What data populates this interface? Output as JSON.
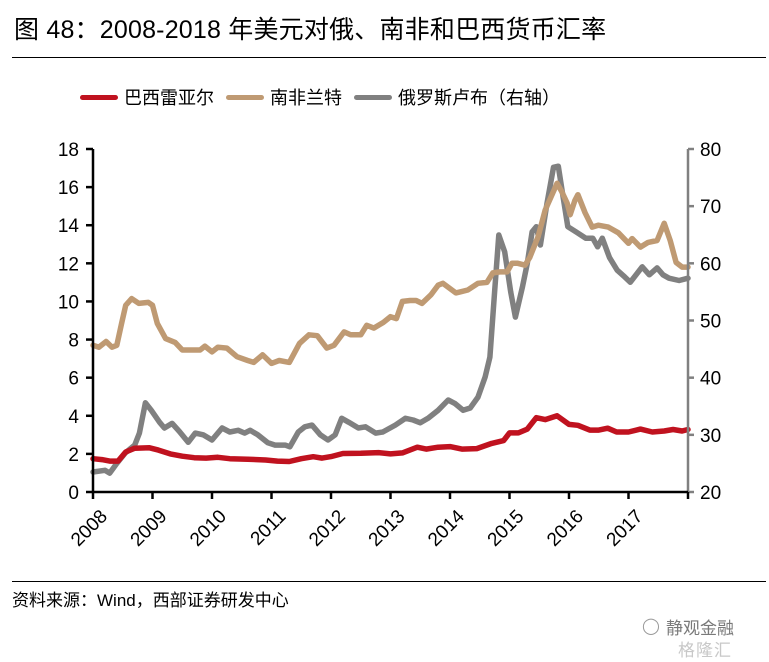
{
  "title": {
    "figure_no": "图 48：",
    "text": "2008-2018 年美元对俄、南非和巴西货币汇率"
  },
  "legend": [
    {
      "label": "巴西雷亚尔",
      "color": "#c0121f"
    },
    {
      "label": "南非兰特",
      "color": "#bf9a73"
    },
    {
      "label": "俄罗斯卢布（右轴）",
      "color": "#808080"
    }
  ],
  "source": "资料来源：Wind，西部证券研发中心",
  "watermark": {
    "line1": "静观金融",
    "line2": "格隆汇"
  },
  "chart_data": {
    "type": "line",
    "title": "2008-2018 年美元对俄、南非和巴西货币汇率",
    "xlabel": "",
    "ylabel": "",
    "y2label": "",
    "xlim": [
      2008,
      2018
    ],
    "ylim": [
      0,
      18
    ],
    "y2lim": [
      20,
      80
    ],
    "x_ticks": [
      2008,
      2009,
      2010,
      2011,
      2012,
      2013,
      2014,
      2015,
      2016,
      2017,
      2018
    ],
    "x_tick_labels": [
      "2008",
      "2009",
      "2010",
      "2011",
      "2012",
      "2013",
      "2014",
      "2015",
      "2016",
      "2017",
      ""
    ],
    "y_ticks": [
      0,
      2,
      4,
      6,
      8,
      10,
      12,
      14,
      16,
      18
    ],
    "y2_ticks": [
      20,
      30,
      40,
      50,
      60,
      70,
      80
    ],
    "grid": false,
    "legend_position": "top",
    "series": [
      {
        "name": "巴西雷亚尔",
        "axis": "left",
        "color": "#c0121f",
        "points": [
          [
            2008.0,
            1.75
          ],
          [
            2008.15,
            1.7
          ],
          [
            2008.28,
            1.62
          ],
          [
            2008.42,
            1.62
          ],
          [
            2008.55,
            2.1
          ],
          [
            2008.7,
            2.3
          ],
          [
            2008.95,
            2.32
          ],
          [
            2009.1,
            2.2
          ],
          [
            2009.3,
            2.0
          ],
          [
            2009.5,
            1.88
          ],
          [
            2009.7,
            1.8
          ],
          [
            2009.9,
            1.78
          ],
          [
            2010.1,
            1.82
          ],
          [
            2010.3,
            1.75
          ],
          [
            2010.6,
            1.72
          ],
          [
            2010.9,
            1.68
          ],
          [
            2011.1,
            1.62
          ],
          [
            2011.3,
            1.6
          ],
          [
            2011.5,
            1.75
          ],
          [
            2011.7,
            1.85
          ],
          [
            2011.85,
            1.78
          ],
          [
            2012.0,
            1.86
          ],
          [
            2012.2,
            2.02
          ],
          [
            2012.5,
            2.03
          ],
          [
            2012.8,
            2.07
          ],
          [
            2013.0,
            2.0
          ],
          [
            2013.2,
            2.05
          ],
          [
            2013.45,
            2.35
          ],
          [
            2013.6,
            2.25
          ],
          [
            2013.8,
            2.35
          ],
          [
            2014.0,
            2.38
          ],
          [
            2014.2,
            2.25
          ],
          [
            2014.45,
            2.28
          ],
          [
            2014.7,
            2.55
          ],
          [
            2014.9,
            2.7
          ],
          [
            2015.0,
            3.1
          ],
          [
            2015.15,
            3.1
          ],
          [
            2015.3,
            3.3
          ],
          [
            2015.45,
            3.9
          ],
          [
            2015.6,
            3.8
          ],
          [
            2015.8,
            4.0
          ],
          [
            2016.0,
            3.55
          ],
          [
            2016.15,
            3.5
          ],
          [
            2016.35,
            3.25
          ],
          [
            2016.5,
            3.25
          ],
          [
            2016.65,
            3.35
          ],
          [
            2016.8,
            3.15
          ],
          [
            2017.0,
            3.15
          ],
          [
            2017.2,
            3.3
          ],
          [
            2017.4,
            3.15
          ],
          [
            2017.6,
            3.2
          ],
          [
            2017.75,
            3.28
          ],
          [
            2017.9,
            3.2
          ],
          [
            2018.0,
            3.28
          ]
        ]
      },
      {
        "name": "南非兰特",
        "axis": "left",
        "color": "#bf9a73",
        "points": [
          [
            2008.0,
            7.7
          ],
          [
            2008.1,
            7.6
          ],
          [
            2008.22,
            7.9
          ],
          [
            2008.32,
            7.6
          ],
          [
            2008.4,
            7.7
          ],
          [
            2008.48,
            8.85
          ],
          [
            2008.55,
            9.8
          ],
          [
            2008.65,
            10.15
          ],
          [
            2008.77,
            9.9
          ],
          [
            2008.93,
            9.95
          ],
          [
            2009.0,
            9.8
          ],
          [
            2009.08,
            8.85
          ],
          [
            2009.22,
            8.05
          ],
          [
            2009.38,
            7.85
          ],
          [
            2009.5,
            7.45
          ],
          [
            2009.8,
            7.45
          ],
          [
            2009.88,
            7.65
          ],
          [
            2010.0,
            7.35
          ],
          [
            2010.1,
            7.6
          ],
          [
            2010.25,
            7.55
          ],
          [
            2010.42,
            7.1
          ],
          [
            2010.6,
            6.9
          ],
          [
            2010.7,
            6.8
          ],
          [
            2010.85,
            7.2
          ],
          [
            2011.0,
            6.75
          ],
          [
            2011.13,
            6.9
          ],
          [
            2011.3,
            6.8
          ],
          [
            2011.47,
            7.8
          ],
          [
            2011.63,
            8.25
          ],
          [
            2011.77,
            8.2
          ],
          [
            2011.93,
            7.55
          ],
          [
            2012.05,
            7.7
          ],
          [
            2012.22,
            8.4
          ],
          [
            2012.33,
            8.25
          ],
          [
            2012.5,
            8.25
          ],
          [
            2012.6,
            8.75
          ],
          [
            2012.72,
            8.6
          ],
          [
            2012.88,
            8.9
          ],
          [
            2013.0,
            9.2
          ],
          [
            2013.1,
            9.1
          ],
          [
            2013.2,
            10.0
          ],
          [
            2013.33,
            10.05
          ],
          [
            2013.43,
            10.05
          ],
          [
            2013.53,
            9.9
          ],
          [
            2013.68,
            10.35
          ],
          [
            2013.8,
            10.85
          ],
          [
            2013.88,
            10.95
          ],
          [
            2014.1,
            10.45
          ],
          [
            2014.17,
            10.5
          ],
          [
            2014.3,
            10.6
          ],
          [
            2014.47,
            10.95
          ],
          [
            2014.62,
            11.0
          ],
          [
            2014.72,
            11.5
          ],
          [
            2014.84,
            11.55
          ],
          [
            2014.96,
            11.55
          ],
          [
            2015.04,
            12.0
          ],
          [
            2015.14,
            12.0
          ],
          [
            2015.26,
            11.9
          ],
          [
            2015.34,
            12.3
          ],
          [
            2015.48,
            13.4
          ],
          [
            2015.6,
            14.8
          ],
          [
            2015.8,
            16.2
          ],
          [
            2015.88,
            15.75
          ],
          [
            2015.97,
            15.15
          ],
          [
            2016.02,
            14.55
          ],
          [
            2016.1,
            15.3
          ],
          [
            2016.15,
            15.6
          ],
          [
            2016.27,
            14.65
          ],
          [
            2016.39,
            13.9
          ],
          [
            2016.49,
            14.0
          ],
          [
            2016.66,
            13.9
          ],
          [
            2016.83,
            13.6
          ],
          [
            2017.0,
            13.05
          ],
          [
            2017.06,
            13.3
          ],
          [
            2017.2,
            12.85
          ],
          [
            2017.33,
            13.1
          ],
          [
            2017.48,
            13.2
          ],
          [
            2017.6,
            14.1
          ],
          [
            2017.7,
            13.2
          ],
          [
            2017.8,
            12.05
          ],
          [
            2017.9,
            11.8
          ],
          [
            2018.0,
            11.8
          ]
        ]
      },
      {
        "name": "俄罗斯卢布（右轴）",
        "axis": "right",
        "color": "#808080",
        "points": [
          [
            2008.0,
            23.5
          ],
          [
            2008.2,
            23.8
          ],
          [
            2008.28,
            23.3
          ],
          [
            2008.4,
            25.0
          ],
          [
            2008.54,
            26.8
          ],
          [
            2008.7,
            28.2
          ],
          [
            2008.78,
            30.3
          ],
          [
            2008.88,
            35.6
          ],
          [
            2008.98,
            34.3
          ],
          [
            2009.12,
            32.2
          ],
          [
            2009.2,
            31.2
          ],
          [
            2009.33,
            32.0
          ],
          [
            2009.45,
            30.6
          ],
          [
            2009.6,
            28.7
          ],
          [
            2009.72,
            30.3
          ],
          [
            2009.85,
            30.0
          ],
          [
            2010.0,
            29.1
          ],
          [
            2010.17,
            31.2
          ],
          [
            2010.3,
            30.5
          ],
          [
            2010.44,
            30.8
          ],
          [
            2010.55,
            30.3
          ],
          [
            2010.64,
            30.8
          ],
          [
            2010.77,
            30.0
          ],
          [
            2010.94,
            28.6
          ],
          [
            2011.06,
            28.2
          ],
          [
            2011.23,
            28.2
          ],
          [
            2011.31,
            27.9
          ],
          [
            2011.45,
            30.5
          ],
          [
            2011.56,
            31.4
          ],
          [
            2011.68,
            31.7
          ],
          [
            2011.82,
            30.0
          ],
          [
            2011.95,
            29.1
          ],
          [
            2012.07,
            30.0
          ],
          [
            2012.18,
            32.9
          ],
          [
            2012.3,
            32.2
          ],
          [
            2012.46,
            31.2
          ],
          [
            2012.58,
            31.4
          ],
          [
            2012.75,
            30.3
          ],
          [
            2012.87,
            30.5
          ],
          [
            2013.08,
            31.7
          ],
          [
            2013.25,
            32.9
          ],
          [
            2013.38,
            32.6
          ],
          [
            2013.5,
            32.1
          ],
          [
            2013.63,
            32.9
          ],
          [
            2013.8,
            34.3
          ],
          [
            2013.97,
            36.1
          ],
          [
            2014.08,
            35.5
          ],
          [
            2014.22,
            34.3
          ],
          [
            2014.34,
            34.7
          ],
          [
            2014.47,
            36.6
          ],
          [
            2014.59,
            40.1
          ],
          [
            2014.67,
            43.6
          ],
          [
            2014.75,
            55.0
          ],
          [
            2014.82,
            64.95
          ],
          [
            2014.92,
            62.0
          ],
          [
            2015.02,
            55.0
          ],
          [
            2015.1,
            50.6
          ],
          [
            2015.22,
            56.0
          ],
          [
            2015.3,
            60.0
          ],
          [
            2015.38,
            65.5
          ],
          [
            2015.45,
            66.4
          ],
          [
            2015.52,
            63.2
          ],
          [
            2015.63,
            70.5
          ],
          [
            2015.74,
            76.8
          ],
          [
            2015.82,
            77.0
          ],
          [
            2015.9,
            71.6
          ],
          [
            2015.98,
            66.4
          ],
          [
            2016.12,
            65.5
          ],
          [
            2016.28,
            64.4
          ],
          [
            2016.4,
            64.4
          ],
          [
            2016.48,
            62.9
          ],
          [
            2016.56,
            64.4
          ],
          [
            2016.68,
            61.0
          ],
          [
            2016.81,
            58.8
          ],
          [
            2016.94,
            57.6
          ],
          [
            2017.03,
            56.7
          ],
          [
            2017.23,
            59.4
          ],
          [
            2017.35,
            58.0
          ],
          [
            2017.48,
            59.2
          ],
          [
            2017.58,
            58.0
          ],
          [
            2017.68,
            57.4
          ],
          [
            2017.85,
            57.0
          ],
          [
            2018.0,
            57.4
          ]
        ]
      }
    ]
  }
}
